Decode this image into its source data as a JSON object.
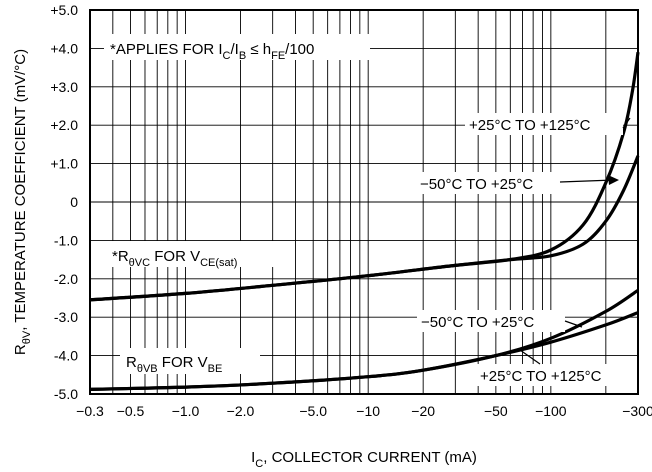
{
  "chart_data": {
    "type": "line",
    "x_scale": "log",
    "x_axis_direction": "decreasing",
    "grid": true,
    "xlim": [
      -0.3,
      -300
    ],
    "ylim": [
      -5.0,
      5.0
    ],
    "xticks": [
      -0.3,
      -0.5,
      -1.0,
      -2.0,
      -5.0,
      -10,
      -20,
      -50,
      -100,
      -300
    ],
    "xtick_labels": [
      "−0.3",
      "−0.5",
      "−1.0",
      "−2.0",
      "−5.0",
      "−10",
      "−20",
      "−50",
      "−100",
      "−300"
    ],
    "yticks": [
      5,
      4,
      3,
      2,
      1,
      0,
      -1,
      -2,
      -3,
      -4,
      -5
    ],
    "ytick_labels": [
      "+5.0",
      "+4.0",
      "+3.0",
      "+2.0",
      "+1.0",
      "0",
      "-1.0",
      "-2.0",
      "-3.0",
      "-4.0",
      "-5.0"
    ],
    "xlabel": {
      "main": "I",
      "sub": "C",
      "rest": ", COLLECTOR CURRENT (mA)"
    },
    "ylabel": {
      "main": "R",
      "sub": "θV",
      "rest": ", TEMPERATURE COEFFICIENT (mV/°C)"
    },
    "series": [
      {
        "name": "+25°C TO +125°C",
        "group": "VCE(sat)",
        "x": [
          -0.3,
          -1,
          -3,
          -10,
          -30,
          -60,
          -100,
          -150,
          -200,
          -250,
          -280,
          -300
        ],
        "y": [
          -2.55,
          -2.38,
          -2.17,
          -1.92,
          -1.65,
          -1.5,
          -1.25,
          -0.6,
          0.5,
          1.8,
          2.9,
          3.9
        ]
      },
      {
        "name": "−50°C TO +25°C",
        "group": "VCE(sat)",
        "x": [
          -0.3,
          -1,
          -3,
          -10,
          -30,
          -60,
          -100,
          -150,
          -200,
          -250,
          -300
        ],
        "y": [
          -2.55,
          -2.38,
          -2.17,
          -1.92,
          -1.65,
          -1.5,
          -1.4,
          -1.1,
          -0.5,
          0.3,
          1.2
        ]
      },
      {
        "name": "−50°C TO +25°C",
        "group": "VBE",
        "x": [
          -0.3,
          -1,
          -3,
          -10,
          -20,
          -50,
          -100,
          -200,
          -300
        ],
        "y": [
          -4.88,
          -4.82,
          -4.72,
          -4.55,
          -4.38,
          -4.0,
          -3.55,
          -2.85,
          -2.3
        ]
      },
      {
        "name": "+25°C TO +125°C",
        "group": "VBE",
        "x": [
          -0.3,
          -1,
          -3,
          -10,
          -20,
          -50,
          -100,
          -200,
          -300
        ],
        "y": [
          -4.88,
          -4.82,
          -4.72,
          -4.55,
          -4.38,
          -4.0,
          -3.65,
          -3.2,
          -2.88
        ]
      }
    ],
    "annotations": {
      "applies": {
        "t1": "*APPLIES FOR I",
        "s1": "C",
        "t2": "/I",
        "s2": "B",
        "t3": " ≤ h",
        "s3": "FE",
        "t4": "/100"
      },
      "vce_label": {
        "t1": "*R",
        "s1": "θVC",
        "t2": " FOR V",
        "s2": "CE(sat)"
      },
      "vbe_label": {
        "t1": "R",
        "s1": "θVB",
        "t2": " FOR V",
        "s2": "BE"
      },
      "vce_hot": "+25°C TO +125°C",
      "vce_cold": "−50°C TO +25°C",
      "vbe_cold": "−50°C TO +25°C",
      "vbe_hot": "+25°C TO +125°C"
    }
  }
}
